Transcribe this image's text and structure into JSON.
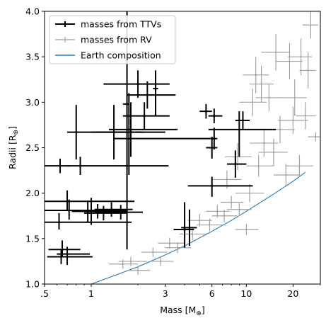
{
  "chart_data": {
    "type": "scatter",
    "xlabel": "Mass [M_⊕]",
    "ylabel": "Radii [R_⊕]",
    "x_scale": "log",
    "xlim": [
      0.5,
      30
    ],
    "ylim": [
      1.0,
      4.0
    ],
    "x_ticks": [
      {
        "value": 0.5,
        "label": ".5"
      },
      {
        "value": 1,
        "label": "1"
      },
      {
        "value": 3,
        "label": "3"
      },
      {
        "value": 6,
        "label": "6"
      },
      {
        "value": 10,
        "label": "10"
      },
      {
        "value": 20,
        "label": "20"
      }
    ],
    "y_ticks": [
      {
        "value": 1.0,
        "label": "1.0"
      },
      {
        "value": 1.5,
        "label": "1.5"
      },
      {
        "value": 2.0,
        "label": "2.0"
      },
      {
        "value": 2.5,
        "label": "2.5"
      },
      {
        "value": 3.0,
        "label": "3.0"
      },
      {
        "value": 3.5,
        "label": "3.5"
      },
      {
        "value": 4.0,
        "label": "4.0"
      }
    ],
    "legend": {
      "position": "upper-left",
      "entries": [
        {
          "label": "masses from TTVs",
          "color": "#000000",
          "style": "errorbar"
        },
        {
          "label": "masses from RV",
          "color": "#a0a0a0",
          "style": "errorbar"
        },
        {
          "label": "Earth composition",
          "color": "#1f77b4",
          "style": "line"
        }
      ]
    },
    "series": [
      {
        "name": "masses from TTVs",
        "color": "#000000",
        "points": [
          {
            "x": 0.64,
            "y": 1.3,
            "xerr": [
              0.12,
              0.38
            ],
            "yerr": [
              0.08,
              0.08
            ]
          },
          {
            "x": 0.65,
            "y": 1.38,
            "xerr": [
              0.12,
              0.2
            ],
            "yerr": [
              0.08,
              0.1
            ]
          },
          {
            "x": 0.7,
            "y": 1.33,
            "xerr": [
              0.1,
              0.28
            ],
            "yerr": [
              0.12,
              0.08
            ]
          },
          {
            "x": 0.62,
            "y": 1.68,
            "xerr": [
              0.12,
              1.2
            ],
            "yerr": [
              0.08,
              0.1
            ]
          },
          {
            "x": 0.72,
            "y": 1.81,
            "xerr": [
              0.22,
              1.0
            ],
            "yerr": [
              0.1,
              0.12
            ]
          },
          {
            "x": 0.7,
            "y": 1.91,
            "xerr": [
              0.2,
              1.2
            ],
            "yerr": [
              0.1,
              0.12
            ]
          },
          {
            "x": 0.95,
            "y": 1.8,
            "xerr": [
              0.2,
              0.6
            ],
            "yerr": [
              0.12,
              0.12
            ]
          },
          {
            "x": 1.0,
            "y": 1.8,
            "xerr": [
              0.15,
              0.35
            ],
            "yerr": [
              0.15,
              0.15
            ]
          },
          {
            "x": 1.1,
            "y": 1.8,
            "xerr": [
              0.2,
              0.6
            ],
            "yerr": [
              0.08,
              0.08
            ]
          },
          {
            "x": 1.2,
            "y": 1.78,
            "xerr": [
              0.3,
              0.5
            ],
            "yerr": [
              0.08,
              0.08
            ]
          },
          {
            "x": 1.35,
            "y": 1.82,
            "xerr": [
              0.3,
              0.5
            ],
            "yerr": [
              0.08,
              0.08
            ]
          },
          {
            "x": 1.55,
            "y": 1.79,
            "xerr": [
              0.5,
              0.6
            ],
            "yerr": [
              0.08,
              0.08
            ]
          },
          {
            "x": 0.63,
            "y": 2.3,
            "xerr": [
              0.13,
              0.1
            ],
            "yerr": [
              0.08,
              0.08
            ]
          },
          {
            "x": 0.85,
            "y": 2.3,
            "xerr": [
              0.15,
              2.3
            ],
            "yerr": [
              0.1,
              0.1
            ]
          },
          {
            "x": 0.8,
            "y": 2.67,
            "xerr": [
              0.1,
              1.4
            ],
            "yerr": [
              0.3,
              0.3
            ]
          },
          {
            "x": 1.4,
            "y": 2.67,
            "xerr": [
              0.4,
              1.6
            ],
            "yerr": [
              0.3,
              0.3
            ]
          },
          {
            "x": 1.7,
            "y": 2.98,
            "xerr": [
              0.1,
              0.05
            ],
            "yerr": [
              1.6,
              1.1
            ]
          },
          {
            "x": 1.75,
            "y": 2.6,
            "xerr": [
              0.35,
              4.3
            ],
            "yerr": [
              0.4,
              0.5
            ]
          },
          {
            "x": 1.8,
            "y": 2.7,
            "xerr": [
              0.5,
              1.8
            ],
            "yerr": [
              0.3,
              0.3
            ]
          },
          {
            "x": 2.2,
            "y": 2.85,
            "xerr": [
              0.6,
              1.0
            ],
            "yerr": [
              0.15,
              0.15
            ]
          },
          {
            "x": 2.0,
            "y": 3.2,
            "xerr": [
              0.8,
              1.2
            ],
            "yerr": [
              0.15,
              0.15
            ]
          },
          {
            "x": 2.3,
            "y": 3.08,
            "xerr": [
              0.6,
              1.2
            ],
            "yerr": [
              0.15,
              0.15
            ]
          },
          {
            "x": 2.6,
            "y": 3.15,
            "xerr": [
              0.1,
              0.1
            ],
            "yerr": [
              0.3,
              0.2
            ]
          },
          {
            "x": 4.0,
            "y": 1.6,
            "xerr": [
              0.6,
              0.6
            ],
            "yerr": [
              0.2,
              0.3
            ]
          },
          {
            "x": 4.3,
            "y": 1.62,
            "xerr": [
              0.5,
              0.5
            ],
            "yerr": [
              0.2,
              0.2
            ]
          },
          {
            "x": 6.0,
            "y": 2.08,
            "xerr": [
              1.8,
              5.0
            ],
            "yerr": [
              0.12,
              0.1
            ]
          },
          {
            "x": 6.0,
            "y": 2.5,
            "xerr": [
              0.5,
              0.5
            ],
            "yerr": [
              0.12,
              0.12
            ]
          },
          {
            "x": 6.2,
            "y": 2.6,
            "xerr": [
              0.3,
              0.3
            ],
            "yerr": [
              0.12,
              0.12
            ]
          },
          {
            "x": 5.5,
            "y": 2.9,
            "xerr": [
              0.5,
              0.5
            ],
            "yerr": [
              0.08,
              0.08
            ]
          },
          {
            "x": 6.2,
            "y": 2.85,
            "xerr": [
              0.5,
              0.8
            ],
            "yerr": [
              0.08,
              0.08
            ]
          },
          {
            "x": 8.5,
            "y": 2.32,
            "xerr": [
              1.0,
              1.5
            ],
            "yerr": [
              0.15,
              0.15
            ]
          },
          {
            "x": 9.0,
            "y": 2.7,
            "xerr": [
              3.3,
              6.5
            ],
            "yerr": [
              0.3,
              0.2
            ]
          },
          {
            "x": 9.5,
            "y": 2.8,
            "xerr": [
              1.0,
              1.0
            ],
            "yerr": [
              0.1,
              0.1
            ]
          }
        ]
      },
      {
        "name": "masses from RV",
        "color": "#a0a0a0",
        "points": [
          {
            "x": 1.6,
            "y": 1.22,
            "xerr": [
              0.3,
              0.4
            ],
            "yerr": [
              0.05,
              0.05
            ]
          },
          {
            "x": 1.8,
            "y": 1.25,
            "xerr": [
              0.3,
              0.5
            ],
            "yerr": [
              0.05,
              0.05
            ]
          },
          {
            "x": 2.0,
            "y": 1.15,
            "xerr": [
              0.3,
              0.4
            ],
            "yerr": [
              0.05,
              0.05
            ]
          },
          {
            "x": 2.5,
            "y": 1.35,
            "xerr": [
              0.4,
              0.6
            ],
            "yerr": [
              0.05,
              0.05
            ]
          },
          {
            "x": 2.8,
            "y": 1.25,
            "xerr": [
              0.4,
              0.6
            ],
            "yerr": [
              0.05,
              0.05
            ]
          },
          {
            "x": 3.2,
            "y": 1.45,
            "xerr": [
              0.5,
              0.8
            ],
            "yerr": [
              0.06,
              0.06
            ]
          },
          {
            "x": 3.6,
            "y": 1.4,
            "xerr": [
              0.6,
              0.8
            ],
            "yerr": [
              0.06,
              0.06
            ]
          },
          {
            "x": 4.5,
            "y": 1.55,
            "xerr": [
              0.8,
              1.0
            ],
            "yerr": [
              0.07,
              0.07
            ]
          },
          {
            "x": 5.0,
            "y": 1.7,
            "xerr": [
              0.8,
              1.0
            ],
            "yerr": [
              0.07,
              0.07
            ]
          },
          {
            "x": 5.8,
            "y": 1.65,
            "xerr": [
              1.0,
              1.2
            ],
            "yerr": [
              0.07,
              0.07
            ]
          },
          {
            "x": 6.5,
            "y": 1.8,
            "xerr": [
              1.0,
              1.3
            ],
            "yerr": [
              0.07,
              0.07
            ]
          },
          {
            "x": 7.2,
            "y": 1.75,
            "xerr": [
              1.2,
              1.5
            ],
            "yerr": [
              0.07,
              0.07
            ]
          },
          {
            "x": 8.0,
            "y": 1.9,
            "xerr": [
              1.2,
              1.6
            ],
            "yerr": [
              0.07,
              0.07
            ]
          },
          {
            "x": 9.0,
            "y": 1.82,
            "xerr": [
              1.5,
              1.8
            ],
            "yerr": [
              0.07,
              0.07
            ]
          },
          {
            "x": 10.0,
            "y": 1.6,
            "xerr": [
              1.5,
              2.0
            ],
            "yerr": [
              0.06,
              0.06
            ]
          },
          {
            "x": 7.5,
            "y": 2.15,
            "xerr": [
              1.5,
              1.8
            ],
            "yerr": [
              0.1,
              0.1
            ]
          },
          {
            "x": 8.8,
            "y": 2.4,
            "xerr": [
              1.5,
              2.0
            ],
            "yerr": [
              0.15,
              0.15
            ]
          },
          {
            "x": 10.5,
            "y": 2.0,
            "xerr": [
              2.0,
              2.5
            ],
            "yerr": [
              0.1,
              0.1
            ]
          },
          {
            "x": 12.0,
            "y": 2.3,
            "xerr": [
              2.0,
              3.0
            ],
            "yerr": [
              0.12,
              0.12
            ]
          },
          {
            "x": 13.0,
            "y": 2.55,
            "xerr": [
              2.5,
              3.0
            ],
            "yerr": [
              0.15,
              0.15
            ]
          },
          {
            "x": 15.0,
            "y": 2.45,
            "xerr": [
              3.0,
              3.5
            ],
            "yerr": [
              0.15,
              0.15
            ]
          },
          {
            "x": 16.5,
            "y": 2.7,
            "xerr": [
              3.0,
              4.0
            ],
            "yerr": [
              0.15,
              0.15
            ]
          },
          {
            "x": 18.0,
            "y": 2.2,
            "xerr": [
              3.0,
              4.0
            ],
            "yerr": [
              0.12,
              0.12
            ]
          },
          {
            "x": 20.0,
            "y": 2.8,
            "xerr": [
              4.0,
              5.0
            ],
            "yerr": [
              0.15,
              0.15
            ]
          },
          {
            "x": 22.0,
            "y": 2.3,
            "xerr": [
              4.0,
              5.0
            ],
            "yerr": [
              0.12,
              0.12
            ]
          },
          {
            "x": 24.0,
            "y": 2.85,
            "xerr": [
              3.0,
              4.0
            ],
            "yerr": [
              0.15,
              0.15
            ]
          },
          {
            "x": 11.0,
            "y": 3.0,
            "xerr": [
              2.0,
              2.5
            ],
            "yerr": [
              0.15,
              0.15
            ]
          },
          {
            "x": 12.5,
            "y": 3.2,
            "xerr": [
              2.0,
              2.5
            ],
            "yerr": [
              0.2,
              0.2
            ]
          },
          {
            "x": 14.0,
            "y": 3.05,
            "xerr": [
              2.5,
              3.0
            ],
            "yerr": [
              0.15,
              0.15
            ]
          },
          {
            "x": 11.5,
            "y": 3.3,
            "xerr": [
              2.0,
              2.5
            ],
            "yerr": [
              0.2,
              0.2
            ]
          },
          {
            "x": 15.5,
            "y": 3.55,
            "xerr": [
              3.0,
              3.5
            ],
            "yerr": [
              0.2,
              0.2
            ]
          },
          {
            "x": 19.0,
            "y": 3.45,
            "xerr": [
              3.5,
              4.0
            ],
            "yerr": [
              0.2,
              0.2
            ]
          },
          {
            "x": 22.5,
            "y": 3.5,
            "xerr": [
              4.0,
              4.0
            ],
            "yerr": [
              0.2,
              0.2
            ]
          },
          {
            "x": 26.0,
            "y": 3.85,
            "xerr": [
              3.0,
              3.0
            ],
            "yerr": [
              0.15,
              0.15
            ]
          },
          {
            "x": 25.0,
            "y": 3.35,
            "xerr": [
              3.0,
              3.0
            ],
            "yerr": [
              0.2,
              0.2
            ]
          },
          {
            "x": 20.5,
            "y": 3.05,
            "xerr": [
              4.0,
              4.0
            ],
            "yerr": [
              0.2,
              0.2
            ]
          },
          {
            "x": 28.0,
            "y": 2.62,
            "xerr": [
              3.0,
              2.0
            ],
            "yerr": [
              0.05,
              0.05
            ]
          }
        ]
      }
    ],
    "lines": [
      {
        "name": "Earth composition",
        "color": "#1f77b4",
        "x": [
          1.0,
          1.5,
          2.0,
          3.0,
          4.0,
          6.0,
          8.0,
          10.0,
          15.0,
          20.0,
          24.0
        ],
        "y": [
          1.0,
          1.11,
          1.19,
          1.32,
          1.42,
          1.58,
          1.7,
          1.8,
          1.99,
          2.13,
          2.23
        ]
      }
    ]
  }
}
